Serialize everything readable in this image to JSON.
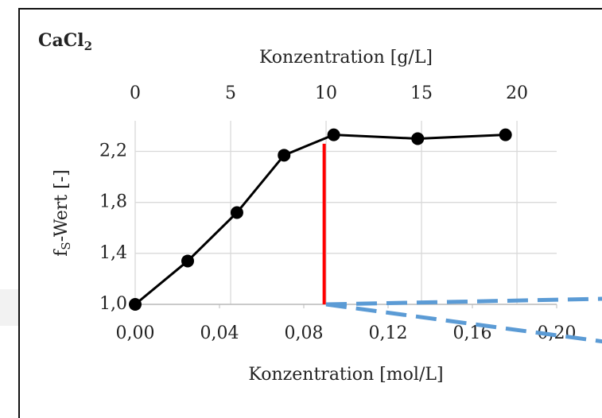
{
  "chart_data": {
    "type": "line",
    "title": "CaCl",
    "title_subscript": "2",
    "x_label": "Konzentration [mol/L]",
    "x2_label": "Konzentration [g/L]",
    "y_label": "f",
    "y_label_subscript": "S",
    "y_label_rest": "-Wert [-]",
    "xlim": [
      0,
      0.2
    ],
    "xticks": [
      {
        "value": 0,
        "label": "0,00"
      },
      {
        "value": 0.04,
        "label": "0,04"
      },
      {
        "value": 0.08,
        "label": "0,08"
      },
      {
        "value": 0.12,
        "label": "0,12"
      },
      {
        "value": 0.16,
        "label": "0,16"
      },
      {
        "value": 0.2,
        "label": "0,20"
      }
    ],
    "x2lim": [
      0,
      22.08
    ],
    "x2ticks": [
      0,
      5,
      10,
      15,
      20
    ],
    "ylim": [
      1.0,
      2.44
    ],
    "yticks": [
      {
        "value": 1.0,
        "label": "1,0"
      },
      {
        "value": 1.4,
        "label": "1,4"
      },
      {
        "value": 1.8,
        "label": "1,8"
      },
      {
        "value": 2.2,
        "label": "2,2"
      }
    ],
    "grid": true,
    "series": [
      {
        "axis": "x2",
        "color": "#000000",
        "x": [
          0,
          2.75,
          5.33,
          7.8,
          10.4,
          14.8,
          19.4
        ],
        "values": [
          1.0,
          1.34,
          1.72,
          2.17,
          2.33,
          2.3,
          2.33
        ]
      }
    ],
    "marker": {
      "axis": "x2",
      "color": "#ff0000",
      "x": 9.9,
      "y": [
        1.0,
        2.26
      ]
    }
  }
}
